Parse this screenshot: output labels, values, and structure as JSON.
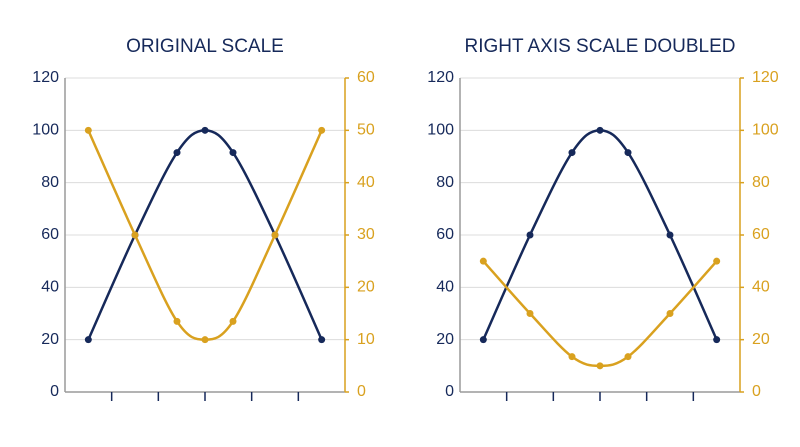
{
  "chart_data": [
    {
      "type": "line",
      "title": "ORIGINAL SCALE",
      "x": [
        0.5,
        1.5,
        2.4,
        3,
        3.6,
        4.5,
        5.5
      ],
      "xlim": [
        0,
        6
      ],
      "xticks": [
        1,
        2,
        3,
        4,
        5
      ],
      "ylim": [
        0,
        120
      ],
      "yticks": [
        0,
        20,
        40,
        60,
        80,
        100,
        120
      ],
      "y2lim": [
        0,
        60
      ],
      "y2ticks": [
        0,
        10,
        20,
        30,
        40,
        50,
        60
      ],
      "grid": true,
      "series": [
        {
          "color": "#16295a",
          "values": [
            20,
            60,
            91.5,
            100,
            91.5,
            60,
            20
          ]
        },
        {
          "color": "#d9a11f",
          "axis": "y2",
          "values": [
            50,
            30,
            13.5,
            10,
            13.5,
            30,
            50
          ]
        }
      ]
    },
    {
      "type": "line",
      "title": "RIGHT AXIS SCALE DOUBLED",
      "x": [
        0.5,
        1.5,
        2.4,
        3,
        3.6,
        4.5,
        5.5
      ],
      "xlim": [
        0,
        6
      ],
      "xticks": [
        1,
        2,
        3,
        4,
        5
      ],
      "ylim": [
        0,
        120
      ],
      "yticks": [
        0,
        20,
        40,
        60,
        80,
        100,
        120
      ],
      "y2lim": [
        0,
        120
      ],
      "y2ticks": [
        0,
        20,
        40,
        60,
        80,
        100,
        120
      ],
      "grid": true,
      "series": [
        {
          "color": "#16295a",
          "values": [
            20,
            60,
            91.5,
            100,
            91.5,
            60,
            20
          ]
        },
        {
          "color": "#d9a11f",
          "axis": "y2",
          "values": [
            50,
            30,
            13.5,
            10,
            13.5,
            30,
            50
          ]
        }
      ]
    }
  ]
}
